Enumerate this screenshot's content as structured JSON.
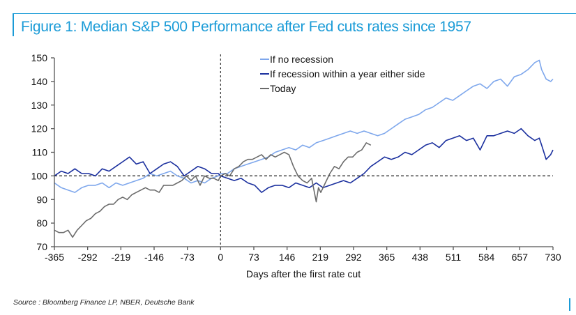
{
  "header": {
    "title": "Figure 1: Median S&P 500 Performance after Fed cuts rates since 1957"
  },
  "footer": {
    "source": "Source : Bloomberg Finance LP, NBER, Deutsche Bank"
  },
  "chart_data": {
    "type": "line",
    "title": "Figure 1: Median S&P 500 Performance after Fed cuts rates since 1957",
    "xlabel": "Days after the first rate cut",
    "ylabel": "",
    "xlim": [
      -365,
      730
    ],
    "ylim": [
      70,
      150
    ],
    "x_ticks": [
      -365,
      -292,
      -219,
      -146,
      -73,
      0,
      73,
      146,
      219,
      292,
      365,
      438,
      511,
      584,
      657,
      730
    ],
    "y_ticks": [
      70,
      80,
      90,
      100,
      110,
      120,
      130,
      140,
      150
    ],
    "grid": false,
    "reference_lines": [
      {
        "type": "horizontal",
        "y": 100,
        "style": "dashed"
      },
      {
        "type": "vertical",
        "x": 0,
        "style": "dashed"
      }
    ],
    "legend_position": "top-center",
    "series": [
      {
        "name": "If no recession",
        "color": "#7ea7ec",
        "x": [
          -365,
          -350,
          -335,
          -320,
          -305,
          -290,
          -275,
          -260,
          -245,
          -230,
          -215,
          -200,
          -185,
          -170,
          -155,
          -140,
          -125,
          -110,
          -95,
          -80,
          -65,
          -50,
          -35,
          -20,
          -5,
          0,
          15,
          30,
          45,
          60,
          75,
          90,
          105,
          120,
          135,
          150,
          165,
          180,
          195,
          210,
          225,
          240,
          255,
          270,
          285,
          300,
          315,
          330,
          345,
          360,
          375,
          390,
          405,
          420,
          435,
          450,
          465,
          480,
          495,
          510,
          525,
          540,
          555,
          570,
          585,
          600,
          615,
          630,
          645,
          660,
          675,
          690,
          700,
          705,
          715,
          725,
          730
        ],
        "values": [
          97,
          95,
          94,
          93,
          95,
          96,
          96,
          97,
          95,
          97,
          96,
          97,
          98,
          99,
          101,
          100,
          101,
          102,
          100,
          99,
          97,
          98,
          97,
          99,
          100,
          101,
          101,
          103,
          104,
          105,
          106,
          107,
          108,
          110,
          111,
          112,
          111,
          113,
          112,
          114,
          115,
          116,
          117,
          118,
          119,
          118,
          119,
          118,
          117,
          118,
          120,
          122,
          124,
          125,
          126,
          128,
          129,
          131,
          133,
          132,
          134,
          136,
          138,
          139,
          137,
          140,
          141,
          138,
          142,
          143,
          145,
          148,
          149,
          145,
          141,
          140,
          141
        ]
      },
      {
        "name": "If recession within a year either side",
        "color": "#1a2f9e",
        "x": [
          -365,
          -350,
          -335,
          -320,
          -305,
          -290,
          -275,
          -260,
          -245,
          -230,
          -215,
          -200,
          -185,
          -170,
          -155,
          -140,
          -125,
          -110,
          -95,
          -80,
          -65,
          -50,
          -35,
          -20,
          -5,
          0,
          15,
          30,
          45,
          60,
          75,
          90,
          105,
          120,
          135,
          150,
          165,
          180,
          195,
          210,
          225,
          240,
          255,
          270,
          285,
          300,
          315,
          330,
          345,
          360,
          375,
          390,
          405,
          420,
          435,
          450,
          465,
          480,
          495,
          510,
          525,
          540,
          555,
          570,
          585,
          600,
          615,
          630,
          645,
          660,
          675,
          690,
          700,
          705,
          715,
          725,
          730
        ],
        "values": [
          100,
          102,
          101,
          103,
          101,
          101,
          100,
          103,
          102,
          104,
          106,
          108,
          105,
          106,
          101,
          103,
          105,
          106,
          104,
          100,
          102,
          104,
          103,
          101,
          101,
          100,
          99,
          98,
          99,
          97,
          96,
          93,
          95,
          96,
          96,
          95,
          97,
          96,
          95,
          97,
          95,
          96,
          97,
          98,
          97,
          99,
          101,
          104,
          106,
          108,
          107,
          108,
          110,
          109,
          111,
          113,
          114,
          112,
          115,
          116,
          117,
          115,
          116,
          111,
          117,
          117,
          118,
          119,
          118,
          120,
          117,
          115,
          116,
          113,
          107,
          109,
          111
        ]
      },
      {
        "name": "Today",
        "color": "#6b6b6b",
        "x": [
          -365,
          -355,
          -345,
          -335,
          -325,
          -315,
          -305,
          -295,
          -285,
          -275,
          -265,
          -255,
          -245,
          -235,
          -225,
          -215,
          -205,
          -195,
          -185,
          -175,
          -165,
          -155,
          -145,
          -135,
          -125,
          -115,
          -105,
          -95,
          -85,
          -75,
          -65,
          -55,
          -45,
          -35,
          -25,
          -15,
          -5,
          0,
          10,
          20,
          30,
          40,
          50,
          60,
          70,
          80,
          90,
          100,
          110,
          120,
          130,
          140,
          150,
          160,
          170,
          180,
          190,
          200,
          205,
          210,
          215,
          220,
          225,
          230,
          240,
          250,
          260,
          270,
          280,
          290,
          300,
          310,
          320,
          330
        ],
        "values": [
          77,
          76,
          76,
          77,
          74,
          77,
          79,
          81,
          82,
          84,
          85,
          87,
          88,
          88,
          90,
          91,
          90,
          92,
          93,
          94,
          95,
          94,
          94,
          93,
          96,
          96,
          96,
          97,
          98,
          100,
          98,
          100,
          96,
          100,
          99,
          99,
          98,
          100,
          101,
          100,
          103,
          104,
          106,
          107,
          107,
          108,
          109,
          107,
          109,
          108,
          109,
          110,
          109,
          104,
          100,
          98,
          97,
          99,
          94,
          89,
          95,
          93,
          95,
          97,
          101,
          104,
          103,
          106,
          108,
          108,
          110,
          111,
          114,
          113
        ]
      }
    ]
  }
}
